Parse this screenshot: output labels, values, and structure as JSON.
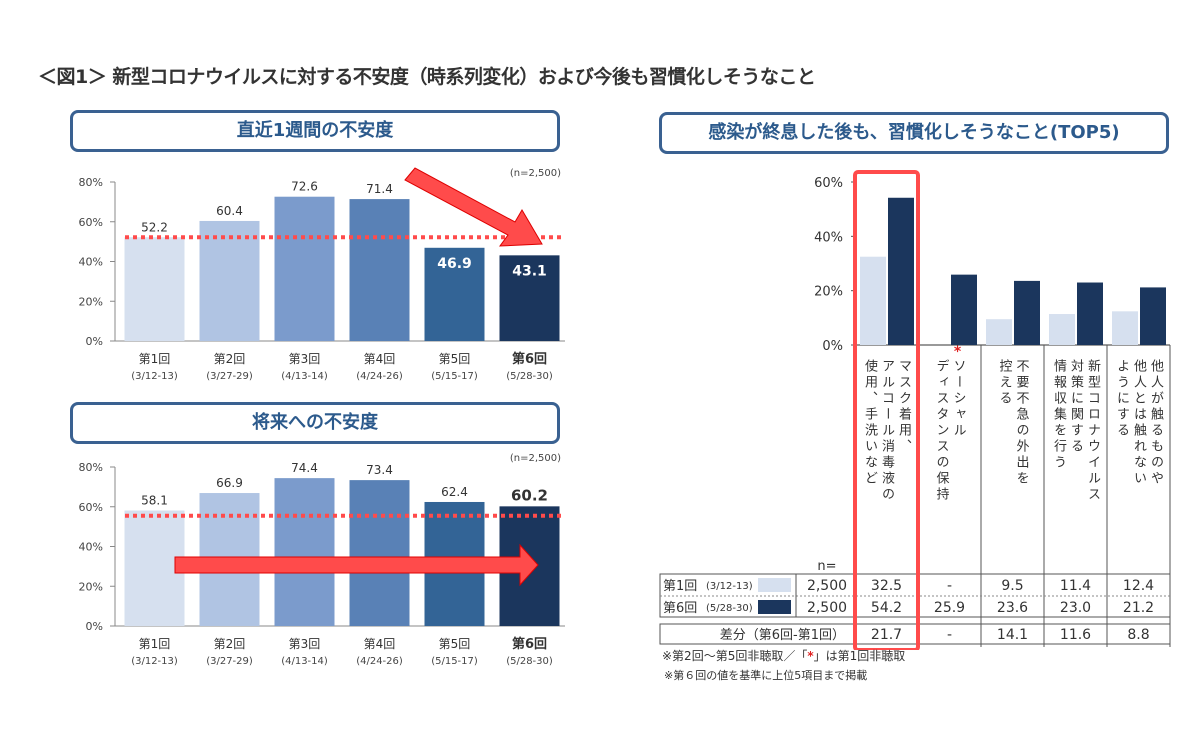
{
  "main_title": "＜図1＞ 新型コロナウイルスに対する不安度（時系列変化）および今後も習慣化しそうなこと",
  "colors": {
    "round_colors": [
      "#d6e0ef",
      "#b0c4e3",
      "#7b9bcc",
      "#5981b6",
      "#336496",
      "#1b365d"
    ],
    "accent_red": "#ff4b4b",
    "header_border": "#3a6191"
  },
  "chart_data": [
    {
      "type": "bar",
      "title": "直近1週間の不安度",
      "note": "(n=2,500)",
      "categories": [
        "第1回",
        "第2回",
        "第3回",
        "第4回",
        "第5回",
        "第6回"
      ],
      "dates": [
        "(3/12-13)",
        "(3/27-29)",
        "(4/13-14)",
        "(4/24-26)",
        "(5/15-17)",
        "(5/28-30)"
      ],
      "values": [
        52.2,
        60.4,
        72.6,
        71.4,
        46.9,
        43.1
      ],
      "value_labels": [
        "52.2",
        "60.4",
        "72.6",
        "71.4",
        "46.9",
        "43.1"
      ],
      "reference_line": 52.2,
      "ylim": [
        0,
        80
      ],
      "yticks": [
        "0%",
        "20%",
        "40%",
        "60%",
        "80%"
      ],
      "annotation": "downward arrow"
    },
    {
      "type": "bar",
      "title": "将来への不安度",
      "note": "(n=2,500)",
      "categories": [
        "第1回",
        "第2回",
        "第3回",
        "第4回",
        "第5回",
        "第6回"
      ],
      "dates": [
        "(3/12-13)",
        "(3/27-29)",
        "(4/13-14)",
        "(4/24-26)",
        "(5/15-17)",
        "(5/28-30)"
      ],
      "values": [
        58.1,
        66.9,
        74.4,
        73.4,
        62.4,
        60.2
      ],
      "value_labels": [
        "58.1",
        "66.9",
        "74.4",
        "73.4",
        "62.4",
        "60.2"
      ],
      "reference_line": 55.5,
      "ylim": [
        0,
        80
      ],
      "yticks": [
        "0%",
        "20%",
        "40%",
        "60%",
        "80%"
      ],
      "annotation": "rightward arrow"
    },
    {
      "type": "bar",
      "title": "感染が終息した後も、習慣化しそうなこと(TOP5)",
      "categories": [
        "マスク着用、アルコール消毒液の使用、手洗いなど",
        "ソーシャルディスタンスの保持",
        "不要不急の外出を控える",
        "新型コロナウイルス対策に関する情報収集を行う",
        "他人が触るものや他人とは触れないようにする"
      ],
      "category_lines": [
        [
          "マスク着用、",
          "アルコール消毒液の",
          "使用、手洗いなど"
        ],
        [
          "ソーシャル",
          "ディスタンスの保持"
        ],
        [
          "不要不急の外出を",
          "控える"
        ],
        [
          "新型コロナウイルス",
          "対策に関する",
          "情報収集を行う"
        ],
        [
          "他人が触るものや",
          "他人とは触れない",
          "ようにする"
        ]
      ],
      "asterisk_category": 1,
      "series": [
        {
          "name": "第1回",
          "date": "(3/12-13)",
          "n": "2,500",
          "values": [
            32.5,
            null,
            9.5,
            11.4,
            12.4
          ],
          "labels": [
            "32.5",
            "-",
            "9.5",
            "11.4",
            "12.4"
          ]
        },
        {
          "name": "第6回",
          "date": "(5/28-30)",
          "n": "2,500",
          "values": [
            54.2,
            25.9,
            23.6,
            23.0,
            21.2
          ],
          "labels": [
            "54.2",
            "25.9",
            "23.6",
            "23.0",
            "21.2"
          ]
        }
      ],
      "diff": {
        "label": "差分（第6回-第1回）",
        "values": [
          "21.7",
          "-",
          "14.1",
          "11.6",
          "8.8"
        ]
      },
      "n_label": "n=",
      "asterisk": "*",
      "ylim": [
        0,
        60
      ],
      "yticks": [
        "0%",
        "20%",
        "40%",
        "60%"
      ],
      "highlight": "マスク着用、アルコール消毒液の使用、手洗いなど"
    }
  ],
  "notes": {
    "line1_a": "※第2回～第5回非聴取／「",
    "line1_star": "*",
    "line1_b": "」は第1回非聴取",
    "line2": "※第６回の値を基準に上位5項目まで掲載"
  }
}
